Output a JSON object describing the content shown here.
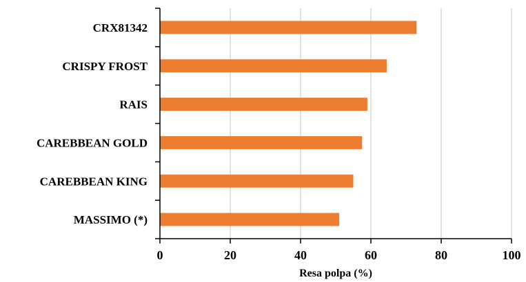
{
  "chart_data": {
    "type": "bar",
    "orientation": "horizontal",
    "categories": [
      "CRX81342",
      "CRISPY FROST",
      "RAIS",
      "CAREBBEAN GOLD",
      "CAREBBEAN KING",
      "MASSIMO (*)"
    ],
    "values": [
      73,
      64.5,
      59,
      57.5,
      55,
      51
    ],
    "bar_color": "#ED7D31",
    "xlabel": "Resa polpa (%)",
    "ylabel": "",
    "title": "",
    "xlim": [
      0,
      100
    ],
    "xticks": [
      0,
      20,
      40,
      60,
      80,
      100
    ],
    "grid": true,
    "legend": "none"
  }
}
